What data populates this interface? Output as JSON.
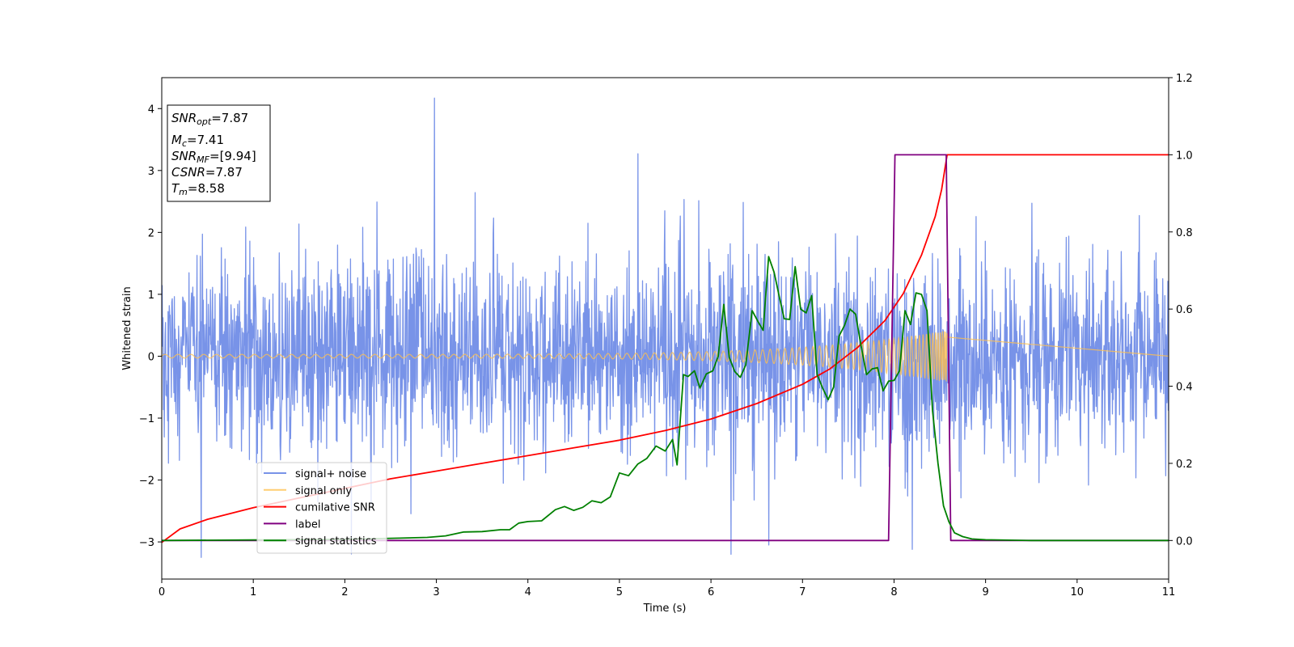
{
  "chart_data": {
    "type": "line",
    "title": "",
    "xlabel": "Time (s)",
    "ylabel": "Whitened strain",
    "y2label": "",
    "xlim": [
      0,
      11
    ],
    "ylim": [
      -3.6,
      4.5
    ],
    "y2lim": [
      -0.1,
      1.2
    ],
    "x_ticks": [
      0,
      1,
      2,
      3,
      4,
      5,
      6,
      7,
      8,
      9,
      10,
      11
    ],
    "y_ticks": [
      -3,
      -2,
      -1,
      0,
      1,
      2,
      3,
      4
    ],
    "y2_ticks": [
      0.0,
      0.2,
      0.4,
      0.6,
      0.8,
      1.0,
      1.2
    ],
    "grid": false,
    "legend_position": "lower-left",
    "info_box": {
      "lines": [
        {
          "base": "SNR",
          "sub": "opt",
          "rest": "=7.87"
        },
        {
          "base": "M",
          "sub": "c",
          "rest": "=7.41"
        },
        {
          "base": "SNR",
          "sub": "MF",
          "rest": "=[9.94]"
        },
        {
          "base": "CSNR",
          "sub": "",
          "rest": "=7.87"
        },
        {
          "base": "T",
          "sub": "m",
          "rest": "=8.58"
        }
      ]
    },
    "series": [
      {
        "name": "signal+ noise",
        "axis": "left",
        "color": "#7893e8",
        "kind": "noise",
        "sigma": 0.8,
        "samples": 2400,
        "spikes": [
          [
            0.43,
            -3.25
          ],
          [
            2.98,
            4.17
          ],
          [
            5.2,
            3.27
          ],
          [
            6.22,
            -3.2
          ],
          [
            8.2,
            -3.12
          ],
          [
            6.63,
            -3.05
          ]
        ]
      },
      {
        "name": "signal only",
        "axis": "left",
        "color": "#ffc04d",
        "kind": "chirp",
        "t_merge": 8.58,
        "amp_start": 0.03,
        "amp_end": 0.42
      },
      {
        "name": "cumilative SNR",
        "axis": "right",
        "color": "#ff0000",
        "kind": "line",
        "x": [
          0,
          0.2,
          0.5,
          1.0,
          1.5,
          2.0,
          2.5,
          3.0,
          3.5,
          4.0,
          4.5,
          5.0,
          5.5,
          6.0,
          6.5,
          7.0,
          7.3,
          7.6,
          7.9,
          8.1,
          8.3,
          8.45,
          8.52,
          8.58,
          11
        ],
        "values": [
          -0.005,
          0.03,
          0.055,
          0.085,
          0.11,
          0.135,
          0.16,
          0.18,
          0.2,
          0.22,
          0.24,
          0.26,
          0.285,
          0.315,
          0.355,
          0.405,
          0.445,
          0.5,
          0.57,
          0.64,
          0.74,
          0.84,
          0.91,
          1.0,
          1.0
        ]
      },
      {
        "name": "label",
        "axis": "right",
        "color": "#800080",
        "kind": "line",
        "x": [
          0,
          7.94,
          8.01,
          8.57,
          8.62,
          11
        ],
        "values": [
          0,
          0,
          1,
          1,
          0,
          0
        ]
      },
      {
        "name": "signal statistics",
        "axis": "right",
        "color": "#008000",
        "kind": "line",
        "x": [
          0,
          2.0,
          2.6,
          2.9,
          3.1,
          3.3,
          3.5,
          3.7,
          3.8,
          3.9,
          4.0,
          4.15,
          4.3,
          4.4,
          4.5,
          4.6,
          4.7,
          4.8,
          4.9,
          5.0,
          5.1,
          5.2,
          5.3,
          5.4,
          5.5,
          5.58,
          5.63,
          5.7,
          5.75,
          5.82,
          5.88,
          5.95,
          6.02,
          6.08,
          6.14,
          6.2,
          6.26,
          6.32,
          6.38,
          6.45,
          6.52,
          6.57,
          6.63,
          6.69,
          6.75,
          6.8,
          6.86,
          6.92,
          6.98,
          7.04,
          7.1,
          7.16,
          7.22,
          7.28,
          7.34,
          7.4,
          7.46,
          7.52,
          7.58,
          7.64,
          7.7,
          7.76,
          7.82,
          7.88,
          7.94,
          8.0,
          8.06,
          8.12,
          8.18,
          8.24,
          8.3,
          8.36,
          8.42,
          8.48,
          8.54,
          8.6,
          8.66,
          8.75,
          8.85,
          9.0,
          9.5,
          10,
          11
        ],
        "values": [
          0,
          0.003,
          0.006,
          0.008,
          0.012,
          0.022,
          0.023,
          0.028,
          0.028,
          0.045,
          0.049,
          0.051,
          0.08,
          0.088,
          0.078,
          0.086,
          0.103,
          0.098,
          0.113,
          0.175,
          0.168,
          0.198,
          0.213,
          0.245,
          0.232,
          0.262,
          0.196,
          0.43,
          0.425,
          0.44,
          0.395,
          0.432,
          0.44,
          0.478,
          0.612,
          0.475,
          0.438,
          0.423,
          0.455,
          0.596,
          0.565,
          0.545,
          0.736,
          0.695,
          0.628,
          0.575,
          0.573,
          0.71,
          0.6,
          0.59,
          0.635,
          0.43,
          0.395,
          0.365,
          0.398,
          0.53,
          0.558,
          0.6,
          0.587,
          0.504,
          0.43,
          0.445,
          0.448,
          0.388,
          0.413,
          0.415,
          0.44,
          0.596,
          0.56,
          0.642,
          0.638,
          0.596,
          0.338,
          0.2,
          0.09,
          0.048,
          0.02,
          0.01,
          0.004,
          0.002,
          0.0,
          0.0,
          0.0
        ]
      }
    ]
  }
}
